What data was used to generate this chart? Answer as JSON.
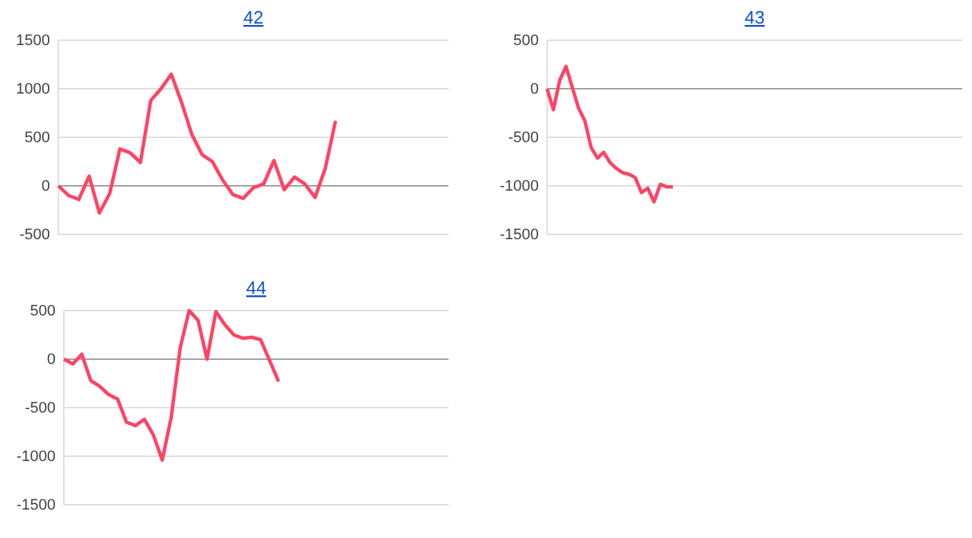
{
  "chart_data": [
    {
      "type": "line",
      "title": "42",
      "categories": [
        null,
        null,
        null,
        null,
        null,
        null,
        null,
        null,
        null,
        null,
        null,
        null,
        null,
        null,
        null,
        null,
        null,
        null,
        null,
        null,
        null,
        null,
        null,
        null,
        null,
        null,
        null,
        null,
        null,
        null,
        null,
        null,
        null,
        null,
        null,
        null,
        null,
        null,
        null
      ],
      "series": [
        {
          "color": "#ff4466",
          "values": [
            0,
            -100,
            -140,
            100,
            -280,
            -80,
            380,
            340,
            240,
            880,
            1000,
            1150,
            860,
            530,
            320,
            250,
            60,
            -90,
            -130,
            -20,
            20,
            260,
            -40,
            90,
            20,
            -120,
            180,
            670,
            null,
            null,
            null,
            null,
            null,
            null,
            null,
            null,
            null,
            null,
            null
          ]
        }
      ],
      "ylim": [
        -500,
        1500
      ],
      "yticks": [
        -500,
        0,
        500,
        1000,
        1500
      ],
      "grid": "y",
      "tick_labels": "y",
      "marker": "none",
      "line_style": "solid"
    },
    {
      "type": "line",
      "title": "43",
      "categories": [
        null,
        null,
        null,
        null,
        null,
        null,
        null,
        null,
        null,
        null,
        null,
        null,
        null,
        null,
        null,
        null,
        null,
        null,
        null,
        null,
        null,
        null,
        null,
        null,
        null,
        null,
        null,
        null,
        null,
        null,
        null,
        null,
        null,
        null,
        null,
        null,
        null,
        null,
        null,
        null,
        null,
        null,
        null,
        null,
        null,
        null,
        null,
        null,
        null,
        null,
        null,
        null,
        null,
        null,
        null,
        null,
        null,
        null,
        null,
        null,
        null,
        null,
        null,
        null,
        null,
        null,
        null
      ],
      "series": [
        {
          "color": "#ff4466",
          "values": [
            0,
            -215,
            85,
            230,
            15,
            -200,
            -330,
            -605,
            -715,
            -655,
            -760,
            -820,
            -865,
            -880,
            -915,
            -1070,
            -1025,
            -1165,
            -985,
            -1010,
            -1010,
            null,
            null,
            null,
            null,
            null,
            null,
            null,
            null,
            null,
            null,
            null,
            null,
            null,
            null,
            null,
            null,
            null,
            null,
            null,
            null,
            null,
            null,
            null,
            null,
            null,
            null,
            null,
            null,
            null,
            null,
            null,
            null,
            null,
            null,
            null,
            null,
            null,
            null,
            null,
            null,
            null,
            null,
            null,
            null,
            null,
            null
          ]
        }
      ],
      "ylim": [
        -1500,
        500
      ],
      "yticks": [
        -1500,
        -1000,
        -500,
        0,
        500
      ],
      "grid": "y",
      "tick_labels": "y",
      "marker": "none",
      "line_style": "solid"
    },
    {
      "type": "line",
      "title": "44",
      "categories": [
        null,
        null,
        null,
        null,
        null,
        null,
        null,
        null,
        null,
        null,
        null,
        null,
        null,
        null,
        null,
        null,
        null,
        null,
        null,
        null,
        null,
        null,
        null,
        null,
        null,
        null,
        null,
        null,
        null,
        null,
        null,
        null,
        null,
        null,
        null,
        null,
        null,
        null,
        null,
        null,
        null,
        null,
        null,
        null
      ],
      "series": [
        {
          "color": "#ff4466",
          "values": [
            0,
            -50,
            50,
            -220,
            -280,
            -365,
            -410,
            -650,
            -685,
            -620,
            -780,
            -1040,
            -600,
            115,
            500,
            400,
            0,
            490,
            355,
            250,
            215,
            225,
            200,
            -15,
            -230,
            null,
            null,
            null,
            null,
            null,
            null,
            null,
            null,
            null,
            null,
            null,
            null,
            null,
            null,
            null,
            null,
            null,
            null,
            null
          ]
        }
      ],
      "ylim": [
        -1500,
        500
      ],
      "yticks": [
        -1500,
        -1000,
        -500,
        0,
        500
      ],
      "grid": "y",
      "tick_labels": "y",
      "marker": "none",
      "line_style": "solid"
    }
  ]
}
